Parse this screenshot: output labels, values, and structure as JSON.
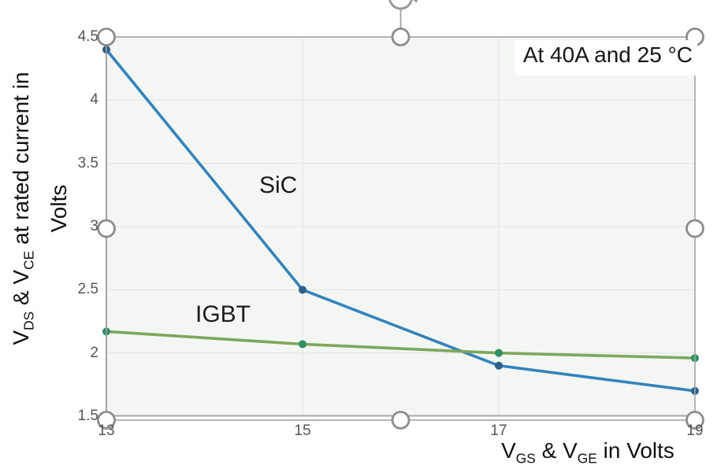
{
  "chart_data": {
    "type": "line",
    "x": [
      13,
      15,
      17,
      19
    ],
    "series": [
      {
        "name": "SiC",
        "values": [
          4.4,
          2.5,
          1.9,
          1.7
        ],
        "color": "#3583bb",
        "marker_color": "#2d5f88"
      },
      {
        "name": "IGBT",
        "values": [
          2.17,
          2.07,
          2.0,
          1.96
        ],
        "color": "#7ca75c",
        "marker_color": "#2e8f62"
      }
    ],
    "xlabel": "V_GS & V_GE in Volts",
    "ylabel": "V_DS & V_CE at rated current in Volts",
    "annotation": "At 40A and 25 °C",
    "xlim": [
      13,
      19
    ],
    "ylim": [
      1.5,
      4.5
    ],
    "x_ticks": [
      13,
      15,
      17,
      19
    ],
    "y_ticks": [
      1.5,
      2,
      2.5,
      3,
      3.5,
      4,
      4.5
    ],
    "grid": true,
    "legend": "inline-labels",
    "plot_bg": "#f4f6f4",
    "gridline_color": "#e6e8e6",
    "axis_color": "#a6a6a6"
  },
  "labels": {
    "annotation": "At 40A and 25 °C",
    "ylabel_line1_pre": "V",
    "ylabel_sub1": "DS",
    "ylabel_mid": " & V",
    "ylabel_sub2": "CE",
    "ylabel_line1_post": " at rated current in",
    "ylabel_line2": "Volts",
    "xlabel_pre": "V",
    "xlabel_sub1": "GS",
    "xlabel_mid": " & V",
    "xlabel_sub2": "GE",
    "xlabel_post": " in Volts"
  },
  "editor": {
    "selection_handle_color": "#8c8c8c",
    "selection_border_color": "#a3a3a3",
    "rotate_icon": "rotate-handle"
  }
}
